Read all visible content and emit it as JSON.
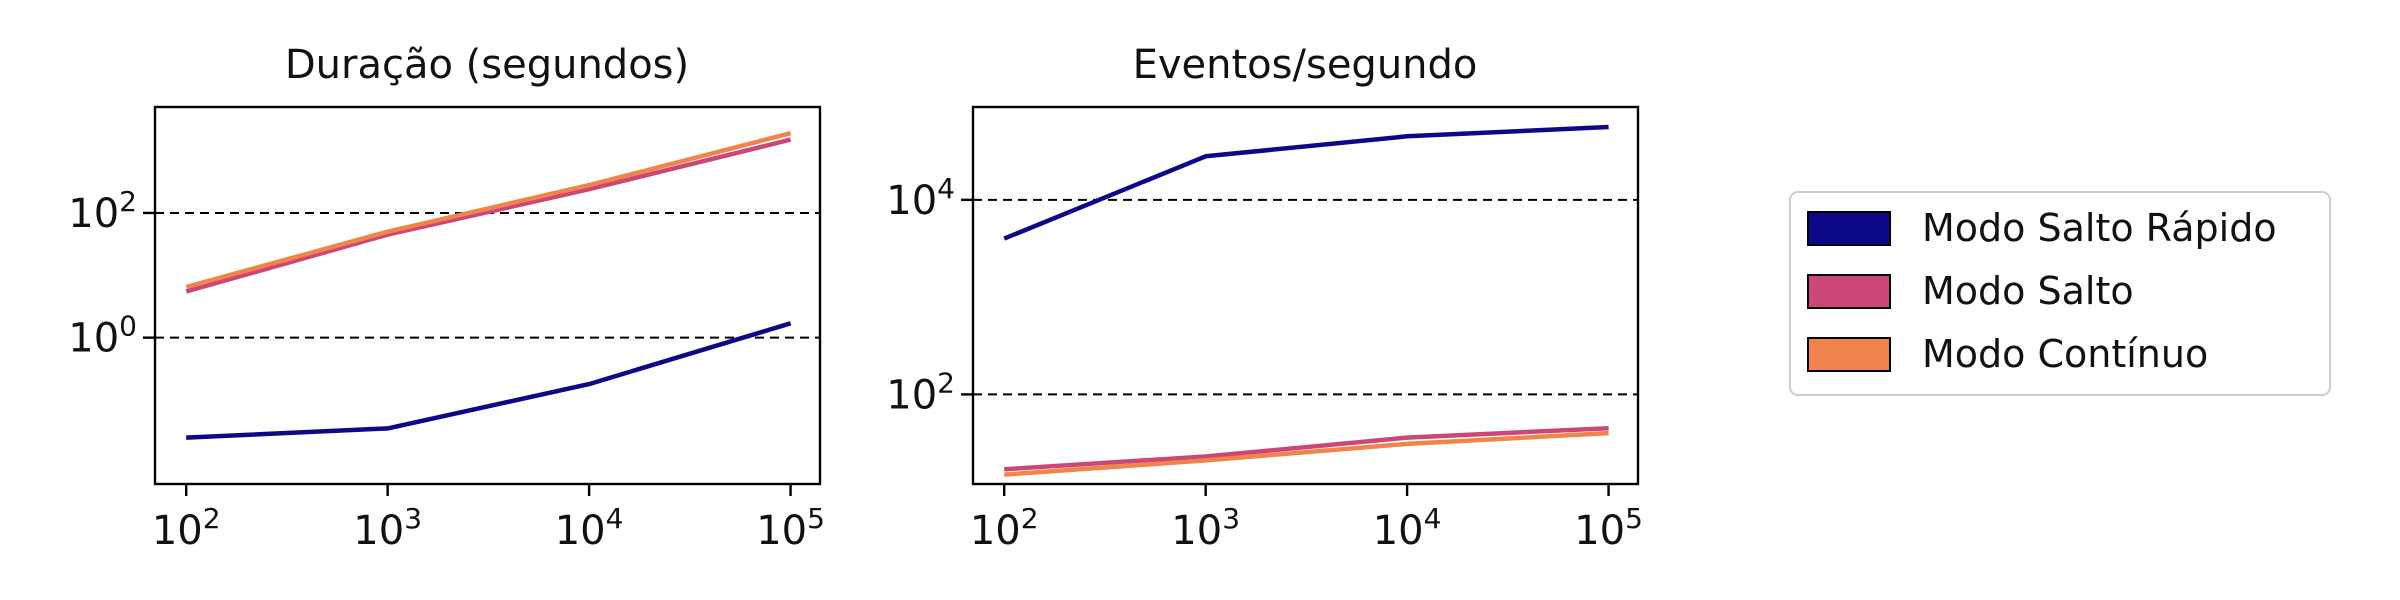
{
  "chart_data": [
    {
      "type": "line",
      "title": "Duração (segundos)",
      "xscale": "log",
      "yscale": "log",
      "x": [
        100,
        1000,
        10000,
        100000
      ],
      "x_ticks": [
        {
          "base": "10",
          "exp": "2"
        },
        {
          "base": "10",
          "exp": "3"
        },
        {
          "base": "10",
          "exp": "4"
        },
        {
          "base": "10",
          "exp": "5"
        }
      ],
      "y_ticks": [
        {
          "base": "10",
          "exp": "2"
        },
        {
          "base": "10",
          "exp": "0"
        }
      ],
      "y_tick_values": [
        100,
        1
      ],
      "xlim": [
        70,
        140000
      ],
      "ylim": [
        0.0045,
        5000
      ],
      "grid": "dashed horizontal at y ticks",
      "series": [
        {
          "name": "Modo Salto Rápido",
          "color": "#0d0887",
          "values": [
            0.025,
            0.035,
            0.18,
            1.7
          ]
        },
        {
          "name": "Modo Salto",
          "color": "#cc4778",
          "values": [
            5.5,
            45,
            240,
            1500
          ]
        },
        {
          "name": "Modo Contínuo",
          "color": "#f0844c",
          "values": [
            6.5,
            50,
            280,
            1900
          ]
        }
      ]
    },
    {
      "type": "line",
      "title": "Eventos/segundo",
      "xscale": "log",
      "yscale": "log",
      "x": [
        100,
        1000,
        10000,
        100000
      ],
      "x_ticks": [
        {
          "base": "10",
          "exp": "2"
        },
        {
          "base": "10",
          "exp": "3"
        },
        {
          "base": "10",
          "exp": "4"
        },
        {
          "base": "10",
          "exp": "5"
        }
      ],
      "y_ticks": [
        {
          "base": "10",
          "exp": "4"
        },
        {
          "base": "10",
          "exp": "2"
        }
      ],
      "y_tick_values": [
        10000,
        100
      ],
      "xlim": [
        70,
        140000
      ],
      "ylim": [
        12,
        90000
      ],
      "grid": "dashed horizontal at y ticks",
      "series": [
        {
          "name": "Modo Salto Rápido",
          "color": "#0d0887",
          "values": [
            4000,
            28000,
            45000,
            56000
          ]
        },
        {
          "name": "Modo Salto",
          "color": "#cc4778",
          "values": [
            17,
            23,
            36,
            45
          ]
        },
        {
          "name": "Modo Contínuo",
          "color": "#f0844c",
          "values": [
            15,
            21,
            31,
            40
          ]
        }
      ]
    }
  ],
  "legend": {
    "placement": "right",
    "items": [
      {
        "label": "Modo Salto Rápido",
        "color": "#0d0887"
      },
      {
        "label": "Modo Salto",
        "color": "#cc4778"
      },
      {
        "label": "Modo Contínuo",
        "color": "#f0844c"
      }
    ]
  }
}
